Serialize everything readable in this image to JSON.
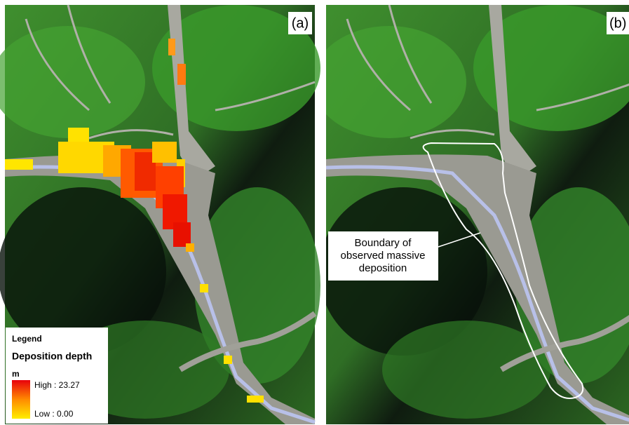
{
  "panel_a": {
    "label": "(a)",
    "legend": {
      "title": "Legend",
      "subtitle": "Deposition depth",
      "unit": "m",
      "high": "High : 23.27",
      "low": "Low : 0.00"
    }
  },
  "panel_b": {
    "label": "(b)",
    "callout": {
      "lines": [
        "Boundary of",
        "observed massive",
        "deposition"
      ]
    }
  }
}
